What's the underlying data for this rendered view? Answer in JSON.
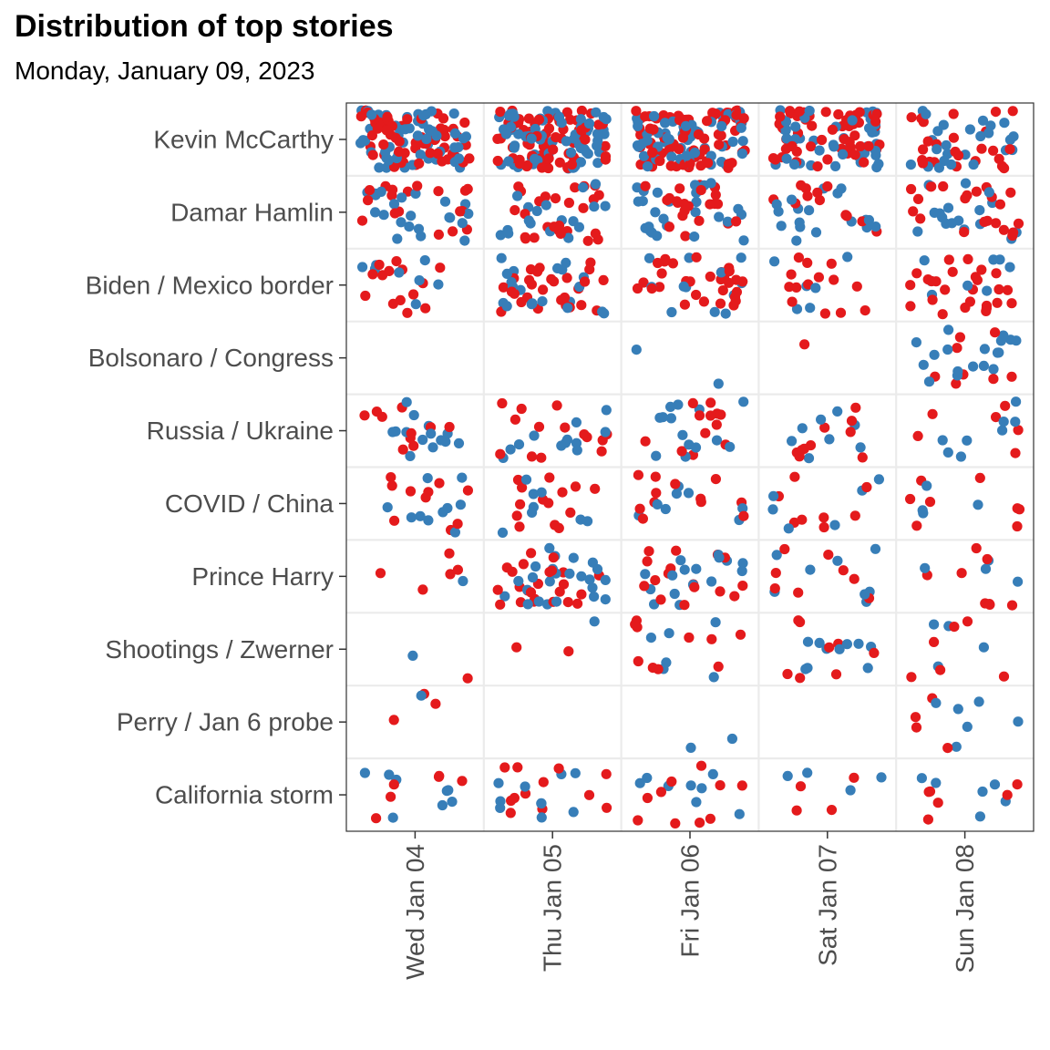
{
  "chart_data": {
    "type": "scatter",
    "title": "Distribution of top stories",
    "subtitle": "Monday, January 09, 2023",
    "x_categories": [
      "Wed Jan 04",
      "Thu Jan 05",
      "Fri Jan 06",
      "Sat Jan 07",
      "Sun Jan 08"
    ],
    "y_categories": [
      "Kevin McCarthy",
      "Damar Hamlin",
      "Biden / Mexico border",
      "Bolsonaro / Congress",
      "Russia / Ukraine",
      "COVID / China",
      "Prince Harry",
      "Shootings / Zwerner",
      "Perry / Jan 6 probe",
      "California storm"
    ],
    "series_colors": {
      "blue": "#377eb8",
      "red": "#e41a1c"
    },
    "grid": true,
    "legend": "none",
    "point_counts": {
      "Kevin McCarthy": [
        [
          60,
          60
        ],
        [
          70,
          75
        ],
        [
          60,
          90
        ],
        [
          45,
          55
        ],
        [
          25,
          25
        ]
      ],
      "Damar Hamlin": [
        [
          22,
          18
        ],
        [
          18,
          26
        ],
        [
          26,
          22
        ],
        [
          18,
          12
        ],
        [
          18,
          22
        ]
      ],
      "Biden / Mexico border": [
        [
          8,
          14
        ],
        [
          20,
          28
        ],
        [
          12,
          30
        ],
        [
          6,
          14
        ],
        [
          8,
          26
        ]
      ],
      "Bolsonaro / Congress": [
        [
          0,
          0
        ],
        [
          0,
          0
        ],
        [
          2,
          0
        ],
        [
          0,
          1
        ],
        [
          18,
          8
        ]
      ],
      "Russia / Ukraine": [
        [
          14,
          10
        ],
        [
          12,
          14
        ],
        [
          14,
          12
        ],
        [
          8,
          10
        ],
        [
          8,
          6
        ]
      ],
      "COVID / China": [
        [
          10,
          10
        ],
        [
          8,
          14
        ],
        [
          8,
          12
        ],
        [
          6,
          8
        ],
        [
          4,
          8
        ]
      ],
      "Prince Harry": [
        [
          1,
          5
        ],
        [
          24,
          24
        ],
        [
          16,
          16
        ],
        [
          8,
          8
        ],
        [
          4,
          8
        ]
      ],
      "Shootings / Zwerner": [
        [
          1,
          1
        ],
        [
          1,
          2
        ],
        [
          6,
          10
        ],
        [
          10,
          8
        ],
        [
          4,
          6
        ]
      ],
      "Perry / Jan 6 probe": [
        [
          1,
          3
        ],
        [
          0,
          0
        ],
        [
          2,
          0
        ],
        [
          0,
          0
        ],
        [
          6,
          4
        ]
      ],
      "California storm": [
        [
          8,
          6
        ],
        [
          10,
          12
        ],
        [
          8,
          10
        ],
        [
          4,
          4
        ],
        [
          6,
          6
        ]
      ]
    }
  }
}
